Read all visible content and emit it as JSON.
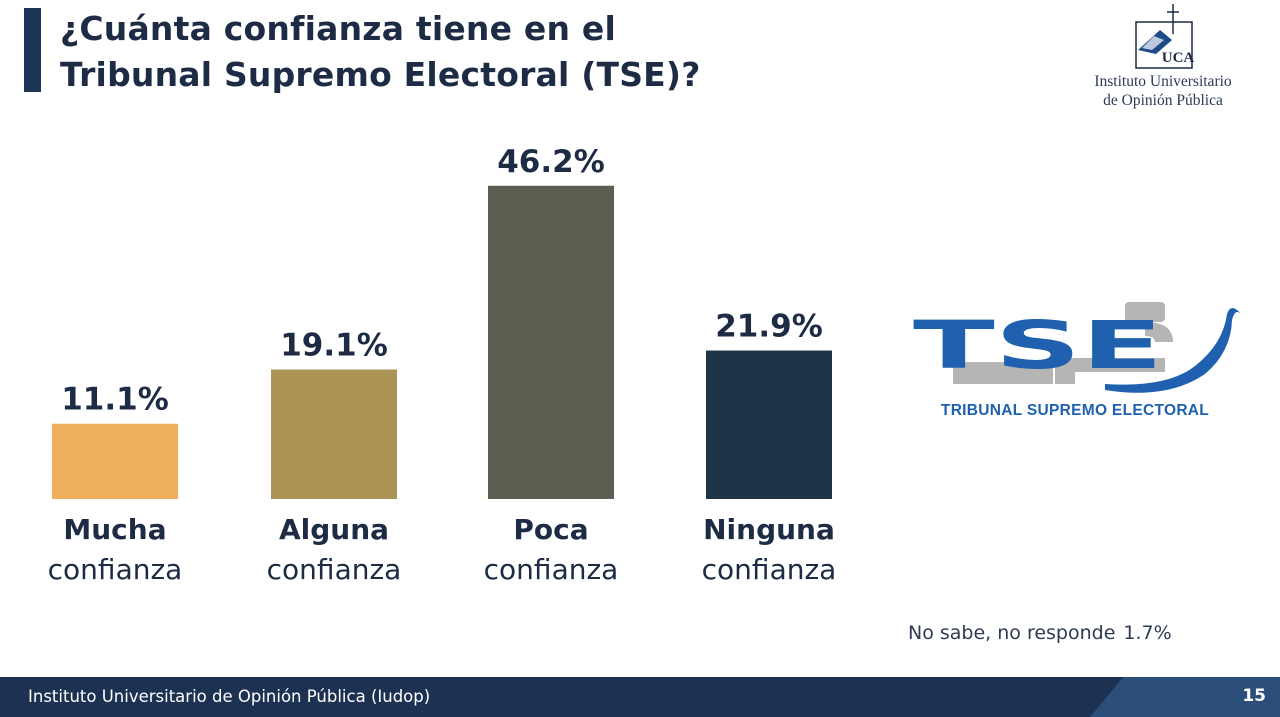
{
  "title": {
    "line1": "¿Cuánta confianza tiene en el",
    "line2": "Tribunal Supremo Electoral (TSE)?"
  },
  "institute_logo": {
    "line1": "Instituto Universitario",
    "line2": "de Opinión Pública",
    "mark_text": "UCA"
  },
  "tse_logo": {
    "mark_text": "TSE",
    "caption": "TRIBUNAL SUPREMO ELECTORAL",
    "colors": {
      "blue": "#1f61ae",
      "gray": "#b5b5b5"
    }
  },
  "chart_data": {
    "type": "bar",
    "categories": [
      {
        "bold": "Mucha",
        "light": "confianza"
      },
      {
        "bold": "Alguna",
        "light": "confianza"
      },
      {
        "bold": "Poca",
        "light": "confianza"
      },
      {
        "bold": "Ninguna",
        "light": "confianza"
      }
    ],
    "values": [
      11.1,
      19.1,
      46.2,
      21.9
    ],
    "value_labels": [
      "11.1%",
      "19.1%",
      "46.2%",
      "21.9%"
    ],
    "colors": [
      "#efaf5c",
      "#ab9456",
      "#5e5d51",
      "#1d3449"
    ],
    "unit": "%",
    "grid": false,
    "legend": "none"
  },
  "note": {
    "label": "No sabe, no responde",
    "value": "1.7%"
  },
  "footer": {
    "text": "Instituto Universitario de Opinión Pública (Iudop)",
    "page": "15"
  }
}
